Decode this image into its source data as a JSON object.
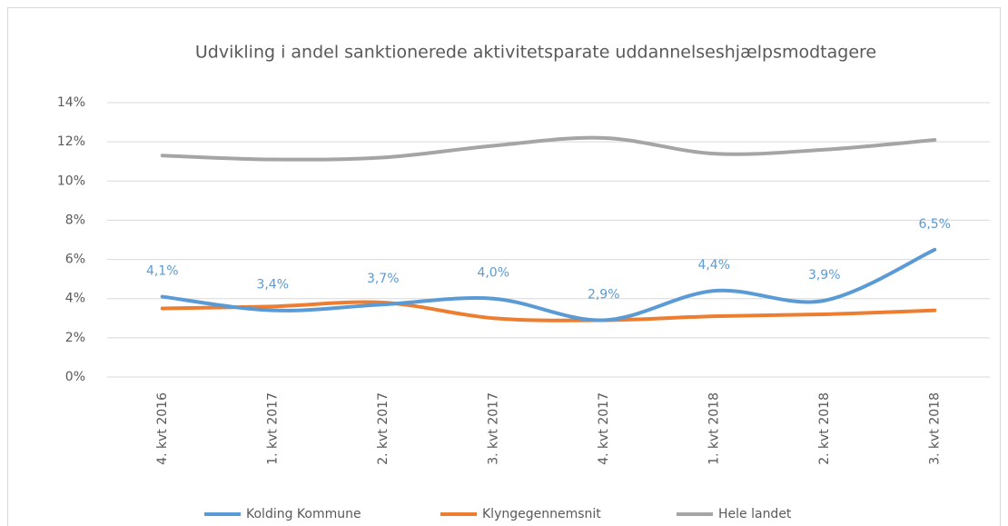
{
  "chart_data": {
    "type": "line",
    "title": "Udvikling i andel sanktionerede aktivitetsparate uddannelseshjælpsmodtagere",
    "categories": [
      "4. kvt 2016",
      "1. kvt 2017",
      "2. kvt 2017",
      "3. kvt 2017",
      "4. kvt 2017",
      "1. kvt 2018",
      "2. kvt 2018",
      "3. kvt 2018"
    ],
    "series": [
      {
        "name": "Kolding Kommune",
        "color": "#5b9bd5",
        "values": [
          4.1,
          3.4,
          3.7,
          4.0,
          2.9,
          4.4,
          3.9,
          6.5
        ],
        "value_labels": [
          "4,1%",
          "3,4%",
          "3,7%",
          "4,0%",
          "2,9%",
          "4,4%",
          "3,9%",
          "6,5%"
        ]
      },
      {
        "name": "Klyngegennemsnit",
        "color": "#ed7d31",
        "values": [
          3.5,
          3.6,
          3.8,
          3.0,
          2.9,
          3.1,
          3.2,
          3.4
        ]
      },
      {
        "name": "Hele landet",
        "color": "#a5a5a5",
        "values": [
          11.3,
          11.1,
          11.2,
          11.8,
          12.2,
          11.4,
          11.6,
          12.1
        ]
      }
    ],
    "ylim": [
      0,
      14
    ],
    "yticks": [
      {
        "value": 0,
        "label": "0%"
      },
      {
        "value": 2,
        "label": "2%"
      },
      {
        "value": 4,
        "label": "4%"
      },
      {
        "value": 6,
        "label": "6%"
      },
      {
        "value": 8,
        "label": "8%"
      },
      {
        "value": 10,
        "label": "10%"
      },
      {
        "value": 12,
        "label": "12%"
      },
      {
        "value": 14,
        "label": "14%"
      }
    ],
    "grid": true,
    "smooth": true,
    "legend": "bottom"
  }
}
